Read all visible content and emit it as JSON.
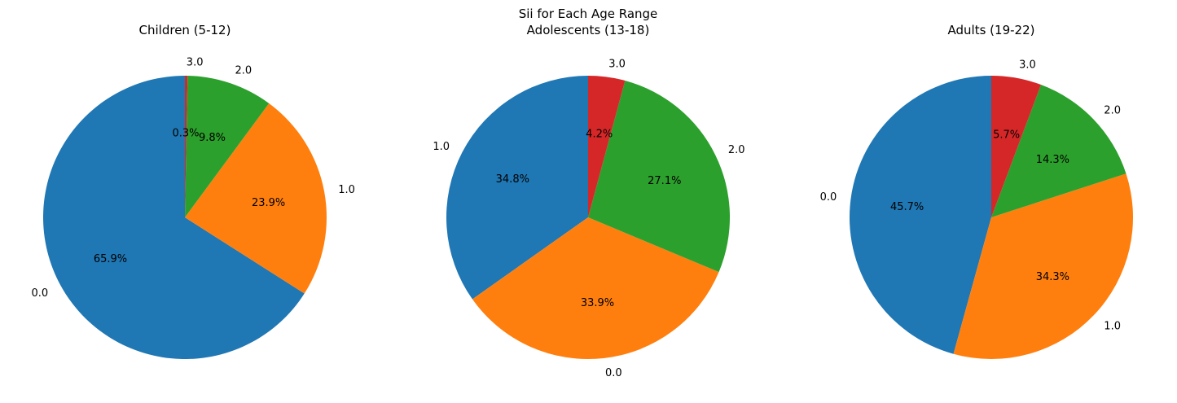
{
  "figure": {
    "suptitle_line1": "Sii for Each Age Range"
  },
  "chart_data": [
    {
      "type": "pie",
      "title": "Children (5-12)",
      "labels": [
        "0.0",
        "1.0",
        "2.0",
        "3.0"
      ],
      "values": [
        65.9,
        23.9,
        9.8,
        0.3
      ],
      "percent_labels": [
        "65.9%",
        "23.9%",
        "9.8%",
        "0.3%"
      ],
      "colors": [
        "#1f77b4",
        "#ff7f0e",
        "#2ca02c",
        "#d62728"
      ],
      "start_angle": 90,
      "direction": "counterclockwise"
    },
    {
      "type": "pie",
      "title": "Adolescents (13-18)",
      "labels": [
        "1.0",
        "0.0",
        "2.0",
        "3.0"
      ],
      "values": [
        34.8,
        33.9,
        27.1,
        4.2
      ],
      "percent_labels": [
        "34.8%",
        "33.9%",
        "27.1%",
        "4.2%"
      ],
      "colors": [
        "#1f77b4",
        "#ff7f0e",
        "#2ca02c",
        "#d62728"
      ],
      "start_angle": 90,
      "direction": "counterclockwise"
    },
    {
      "type": "pie",
      "title": "Adults (19-22)",
      "labels": [
        "0.0",
        "1.0",
        "2.0",
        "3.0"
      ],
      "values": [
        45.7,
        34.3,
        14.3,
        5.7
      ],
      "percent_labels": [
        "45.7%",
        "34.3%",
        "14.3%",
        "5.7%"
      ],
      "colors": [
        "#1f77b4",
        "#ff7f0e",
        "#2ca02c",
        "#d62728"
      ],
      "start_angle": 90,
      "direction": "counterclockwise"
    }
  ]
}
